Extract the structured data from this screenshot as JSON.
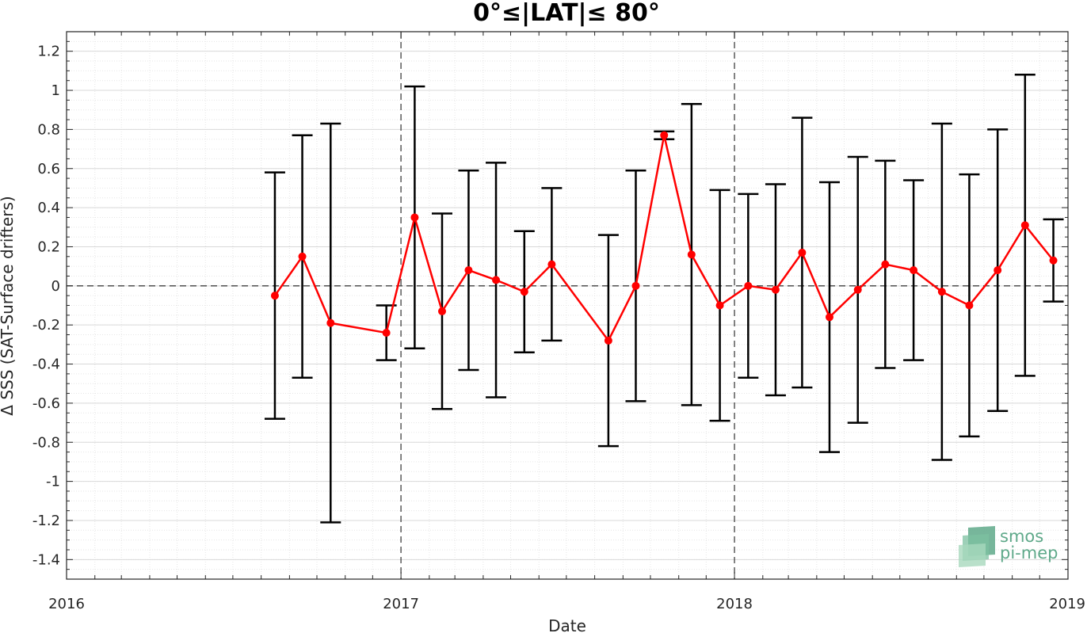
{
  "chart_data": {
    "type": "line",
    "title": "0°≤|LAT|≤ 80°",
    "xlabel": "Date",
    "ylabel": "Δ SSS (SAT-Surface drifters)",
    "x_ticks": [
      "2016",
      "2017",
      "2018",
      "2019"
    ],
    "y_ticks": [
      "-1.4",
      "-1.2",
      "-1",
      "-0.8",
      "-0.6",
      "-0.4",
      "-0.2",
      "0",
      "0.2",
      "0.4",
      "0.6",
      "0.8",
      "1",
      "1.2"
    ],
    "xlim": [
      "2016-01-01",
      "2019-01-01"
    ],
    "ylim": [
      -1.5,
      1.3
    ],
    "grid": true,
    "reference_line_y": 0,
    "year_separators": [
      "2017-01-01",
      "2018-01-01"
    ],
    "series": [
      {
        "color": "#ff0000",
        "error_bar_color": "#000000",
        "points": [
          {
            "x": "2016-08-16",
            "y": -0.05,
            "err": 0.63
          },
          {
            "x": "2016-09-15",
            "y": 0.15,
            "err": 0.62
          },
          {
            "x": "2016-10-16",
            "y": -0.19,
            "err": 1.02
          },
          {
            "x": "2016-12-16",
            "y": -0.24,
            "err": 0.14
          },
          {
            "x": "2017-01-16",
            "y": 0.35,
            "err": 0.67
          },
          {
            "x": "2017-02-15",
            "y": -0.13,
            "err": 0.5
          },
          {
            "x": "2017-03-16",
            "y": 0.08,
            "err": 0.51
          },
          {
            "x": "2017-04-15",
            "y": 0.03,
            "err": 0.6
          },
          {
            "x": "2017-05-16",
            "y": -0.03,
            "err": 0.31
          },
          {
            "x": "2017-06-15",
            "y": 0.11,
            "err": 0.39
          },
          {
            "x": "2017-08-16",
            "y": -0.28,
            "err": 0.54
          },
          {
            "x": "2017-09-15",
            "y": 0.0,
            "err": 0.59
          },
          {
            "x": "2017-10-16",
            "y": 0.77,
            "err": 0.02
          },
          {
            "x": "2017-11-15",
            "y": 0.16,
            "err": 0.77
          },
          {
            "x": "2017-12-16",
            "y": -0.1,
            "err": 0.59
          },
          {
            "x": "2018-01-16",
            "y": 0.0,
            "err": 0.47
          },
          {
            "x": "2018-02-15",
            "y": -0.02,
            "err": 0.54
          },
          {
            "x": "2018-03-16",
            "y": 0.17,
            "err": 0.69
          },
          {
            "x": "2018-04-15",
            "y": -0.16,
            "err": 0.69
          },
          {
            "x": "2018-05-16",
            "y": -0.02,
            "err": 0.68
          },
          {
            "x": "2018-06-15",
            "y": 0.11,
            "err": 0.53
          },
          {
            "x": "2018-07-16",
            "y": 0.08,
            "err": 0.46
          },
          {
            "x": "2018-08-16",
            "y": -0.03,
            "err": 0.86
          },
          {
            "x": "2018-09-15",
            "y": -0.1,
            "err": 0.67
          },
          {
            "x": "2018-10-16",
            "y": 0.08,
            "err": 0.72
          },
          {
            "x": "2018-11-15",
            "y": 0.31,
            "err": 0.77
          },
          {
            "x": "2018-12-16",
            "y": 0.13,
            "err": 0.21
          }
        ]
      }
    ]
  },
  "logo": {
    "line1": "smos",
    "line2": "pi-mep",
    "color": "#5fa98a"
  }
}
